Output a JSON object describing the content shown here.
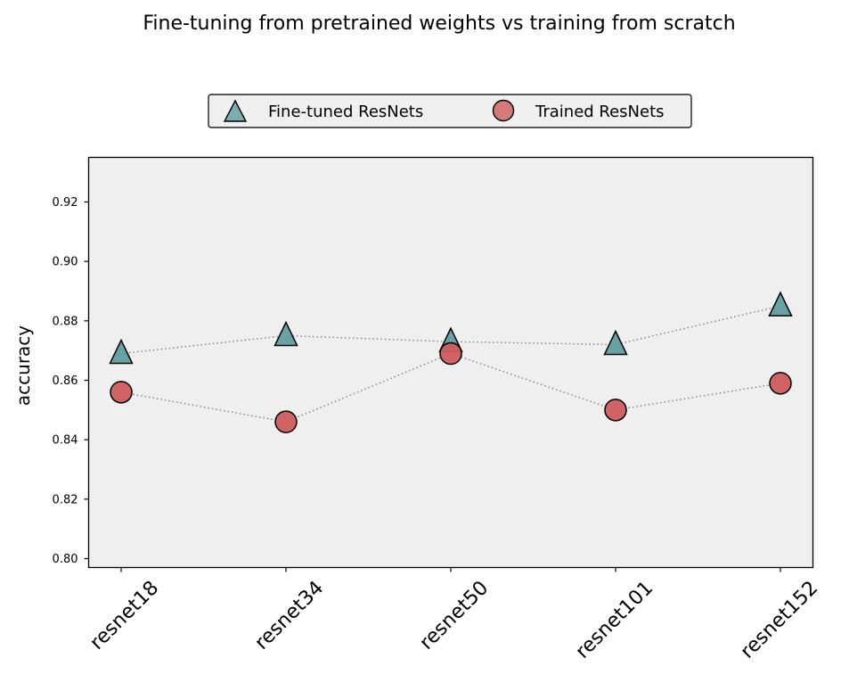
{
  "chart_data": {
    "type": "scatter",
    "title": "Fine-tuning from pretrained weights vs training from scratch",
    "xlabel": "",
    "ylabel": "accuracy",
    "categories": [
      "resnet18",
      "resnet34",
      "resnet50",
      "resnet101",
      "resnet152"
    ],
    "ylim": [
      0.797,
      0.935
    ],
    "yticks": [
      0.8,
      0.82,
      0.84,
      0.86,
      0.88,
      0.9,
      0.92
    ],
    "ytick_labels": [
      "0.80",
      "0.82",
      "0.84",
      "0.86",
      "0.88",
      "0.90",
      "0.92"
    ],
    "series": [
      {
        "name": "Fine-tuned ResNets",
        "marker": "triangle",
        "color": "#5f9ea0",
        "values": [
          0.869,
          0.875,
          0.873,
          0.872,
          0.885
        ]
      },
      {
        "name": "Trained ResNets",
        "marker": "circle",
        "color": "#cd5c5c",
        "values": [
          0.856,
          0.846,
          0.869,
          0.85,
          0.859
        ]
      }
    ],
    "connector_style": "dotted",
    "connector_color": "#808080",
    "plot_background": "#efefef",
    "grid": false,
    "legend_position": "top-center"
  }
}
